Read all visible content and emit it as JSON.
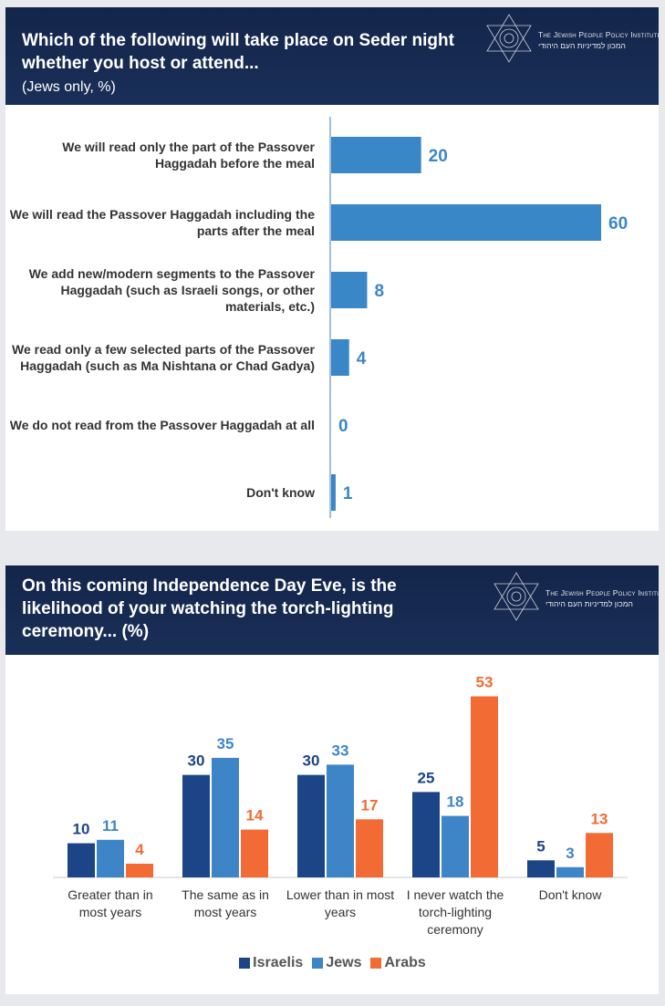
{
  "logo": {
    "name": "The Jewish People Policy Institute",
    "hebrew": "המכון למדיניות העם היהודי"
  },
  "chart_data": [
    {
      "type": "hbar",
      "title": "Which of the following will take place on Seder night whether you host or attend...",
      "subtitle": "(Jews only, %)",
      "categories": [
        "We will read only the part of the Passover Haggadah before the meal",
        "We will read the Passover Haggadah including the parts after the meal",
        "We add new/modern segments to the Passover Haggadah (such as Israeli songs, or other materials, etc.)",
        "We read only a few selected parts of the Passover Haggadah (such as Ma Nishtana or Chad Gadya)",
        "We do not read from the Passover Haggadah at all",
        "Don't know"
      ],
      "values": [
        20,
        60,
        8,
        4,
        0,
        1
      ],
      "color": "#3a87c8",
      "xlim": [
        0,
        60
      ]
    },
    {
      "type": "grouped-bar",
      "title": "On this coming Independence Day Eve, is the likelihood of your watching the torch-lighting ceremony... (%)",
      "categories": [
        "Greater than in most years",
        "The same as in most years",
        "Lower than in most years",
        "I never watch the torch-lighting ceremony",
        "Don't know"
      ],
      "series": [
        {
          "name": "Israelis",
          "color": "#1c4587",
          "values": [
            10,
            30,
            30,
            25,
            5
          ]
        },
        {
          "name": "Jews",
          "color": "#3d85c6",
          "values": [
            11,
            35,
            33,
            18,
            3
          ]
        },
        {
          "name": "Arabs",
          "color": "#f26b35",
          "values": [
            4,
            14,
            17,
            53,
            13
          ]
        }
      ],
      "ylim": [
        0,
        55
      ]
    }
  ]
}
